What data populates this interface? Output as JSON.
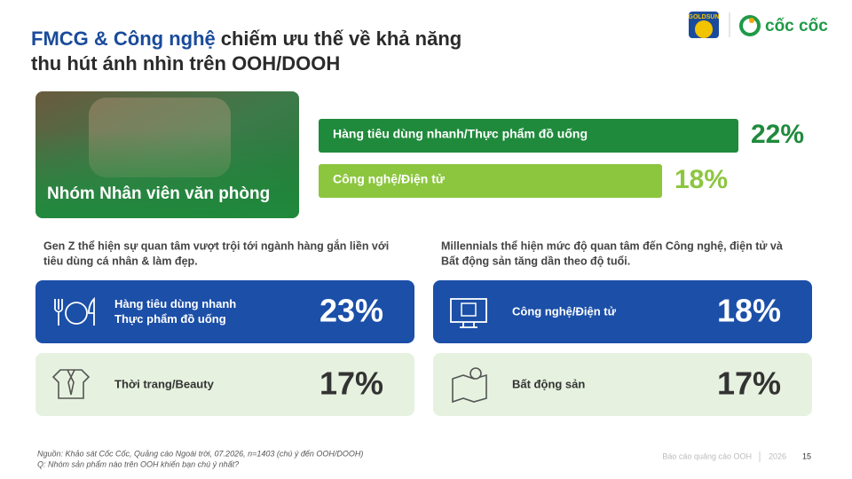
{
  "header": {
    "title_highlight": "FMCG & Công nghệ",
    "title_rest": "chiếm ưu thế về khả năng",
    "title_line2": "thu hút ánh nhìn trên OOH/DOOH"
  },
  "logos": [
    "GOLDSUN",
    "cốc cốc"
  ],
  "hero": {
    "label": "Nhóm Nhân viên văn phòng"
  },
  "bars": [
    {
      "label": "Hàng tiêu dùng nhanh/Thực phẩm đồ uống",
      "value": 22,
      "value_label": "22%",
      "color": "#1f8a3c"
    },
    {
      "label": "Công nghệ/Điện tử",
      "value": 18,
      "value_label": "18%",
      "color": "#8cc63f"
    }
  ],
  "sections": [
    {
      "note": [
        "Gen Z thể hiện sự quan tâm vượt trội tới ngành hàng gắn liền với",
        "tiêu dùng cá nhân & làm đẹp."
      ],
      "cards": [
        {
          "label": [
            "Hàng tiêu dùng nhanh",
            "Thực phẩm đồ uống"
          ],
          "value_label": "23%",
          "icon": "food"
        },
        {
          "label": [
            "Thời trang/Beauty"
          ],
          "value_label": "17%",
          "icon": "shirt"
        }
      ]
    },
    {
      "note": [
        "Millennials thể hiện mức độ quan tâm đến Công nghệ, điện tử và",
        "Bất động sản tăng dần theo độ tuổi."
      ],
      "cards": [
        {
          "label": [
            "Công nghệ/Điện tử"
          ],
          "value_label": "18%",
          "icon": "screen"
        },
        {
          "label": [
            "Bất động sản"
          ],
          "value_label": "17%",
          "icon": "map"
        }
      ]
    }
  ],
  "footer": {
    "source": [
      "Nguồn: Khảo sát Cốc Cốc, Quảng cáo Ngoài trời, 07.2026, n=1403 (chú ý đến OOH/DOOH)",
      "Q: Nhóm sản phẩm nào trên OOH khiến bạn chú ý nhất?"
    ],
    "report": "Báo cáo quảng cáo OOH",
    "year": "2026",
    "page": "15"
  }
}
